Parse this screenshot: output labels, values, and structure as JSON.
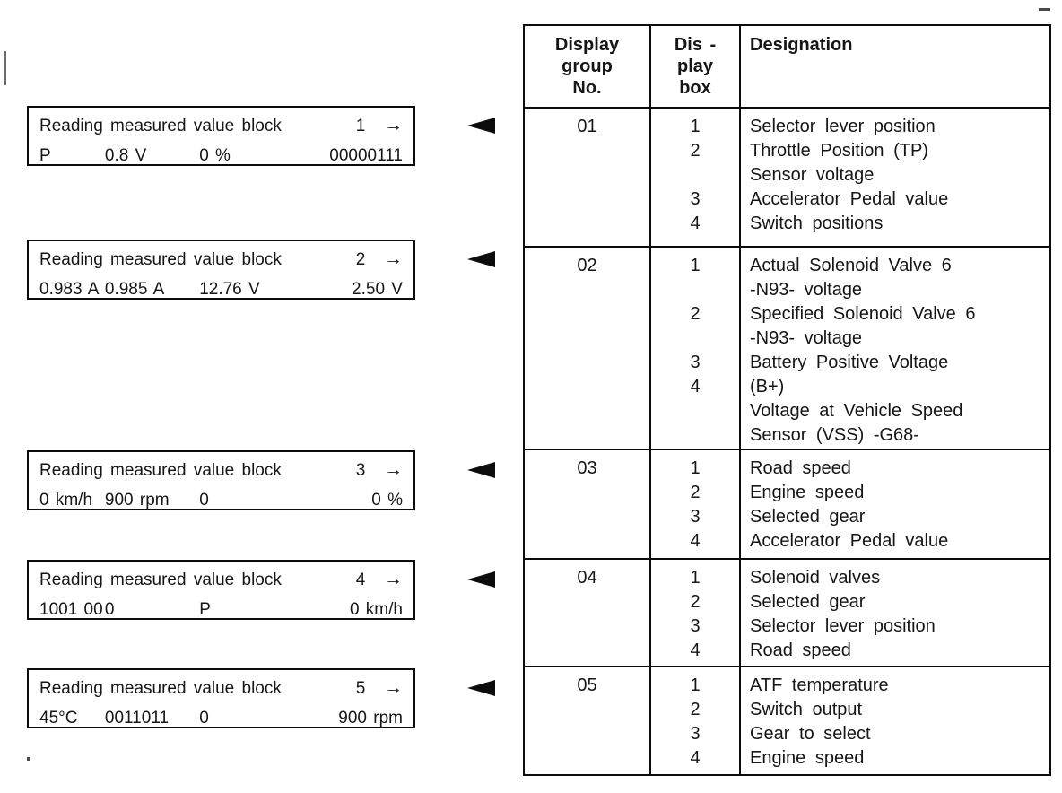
{
  "reading_blocks": [
    {
      "title": "Reading measured value block",
      "number": "1",
      "arrow": "→",
      "values": [
        "P",
        "0.8 V",
        "0 %",
        "00000111"
      ]
    },
    {
      "title": "Reading measured value block",
      "number": "2",
      "arrow": "→",
      "values": [
        "0.983 A",
        "0.985 A",
        "12.76 V",
        "2.50 V"
      ]
    },
    {
      "title": "Reading measured value block",
      "number": "3",
      "arrow": "→",
      "values": [
        "0 km/h",
        "900 rpm",
        "0",
        "0 %"
      ]
    },
    {
      "title": "Reading measured value block",
      "number": "4",
      "arrow": "→",
      "values": [
        "1001 00",
        "0",
        "P",
        "0 km/h"
      ]
    },
    {
      "title": "Reading measured value block",
      "number": "5",
      "arrow": "→",
      "values": [
        "45°C",
        "0011011",
        "0",
        "900 rpm"
      ]
    }
  ],
  "table": {
    "header": {
      "col1_lines": [
        "Display",
        "group",
        "No."
      ],
      "col2_lines": [
        "Dis -",
        "play",
        "box"
      ],
      "col3": "Designation"
    },
    "rows": [
      {
        "group": "01",
        "lines": [
          [
            "1",
            "Selector lever position"
          ],
          [
            "2",
            "Throttle Position (TP)"
          ],
          [
            "",
            "Sensor voltage"
          ],
          [
            "3",
            "Accelerator Pedal value"
          ],
          [
            "4",
            "Switch positions"
          ]
        ]
      },
      {
        "group": "02",
        "lines": [
          [
            "1",
            "Actual Solenoid Valve 6"
          ],
          [
            "",
            "-N93- voltage"
          ],
          [
            "2",
            "Specified Solenoid Valve 6"
          ],
          [
            "",
            "-N93- voltage"
          ],
          [
            "3",
            "Battery Positive Voltage"
          ],
          [
            "4",
            "(B+)"
          ],
          [
            "",
            "Voltage at Vehicle Speed"
          ],
          [
            "",
            "Sensor (VSS) -G68-"
          ]
        ]
      },
      {
        "group": "03",
        "lines": [
          [
            "1",
            "Road speed"
          ],
          [
            "2",
            "Engine speed"
          ],
          [
            "3",
            "Selected gear"
          ],
          [
            "4",
            "Accelerator Pedal value"
          ]
        ]
      },
      {
        "group": "04",
        "lines": [
          [
            "1",
            "Solenoid valves"
          ],
          [
            "2",
            "Selected gear"
          ],
          [
            "3",
            "Selector lever position"
          ],
          [
            "4",
            "Road speed"
          ]
        ]
      },
      {
        "group": "05",
        "lines": [
          [
            "1",
            "ATF temperature"
          ],
          [
            "2",
            "Switch output"
          ],
          [
            "3",
            "Gear to select"
          ],
          [
            "4",
            "Engine speed"
          ]
        ]
      }
    ]
  },
  "icons": {
    "left_pointer": "◄",
    "right_arrow": "→"
  }
}
